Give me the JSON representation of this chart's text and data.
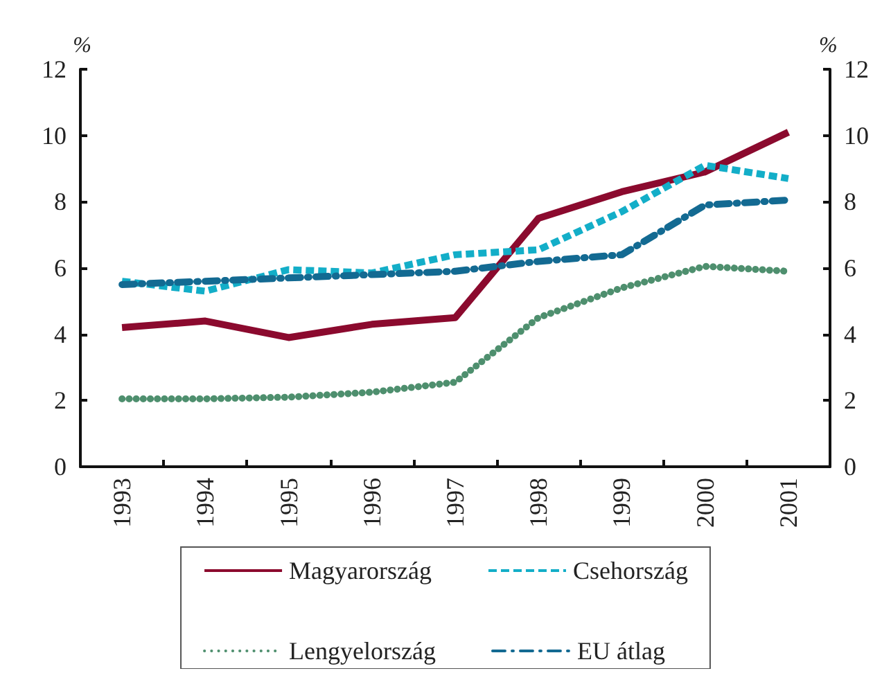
{
  "chart_data": {
    "type": "line",
    "categories": [
      "1993",
      "1994",
      "1995",
      "1996",
      "1997",
      "1998",
      "1999",
      "2000",
      "2001"
    ],
    "series": [
      {
        "name": "Magyarország",
        "color": "#8b0a2e",
        "line_style": "solid",
        "values": [
          4.2,
          4.4,
          3.9,
          4.3,
          4.5,
          7.5,
          8.3,
          8.9,
          10.1
        ]
      },
      {
        "name": "Csehország",
        "color": "#13aec8",
        "line_style": "dashed",
        "values": [
          5.6,
          5.3,
          5.95,
          5.85,
          6.4,
          6.55,
          7.7,
          9.1,
          8.7
        ]
      },
      {
        "name": "Lengyelország",
        "color": "#4e8f6e",
        "line_style": "dotted",
        "values": [
          2.05,
          2.05,
          2.1,
          2.25,
          2.55,
          4.5,
          5.4,
          6.05,
          5.9
        ]
      },
      {
        "name": "EU átlag",
        "color": "#136a92",
        "line_style": "dashdot",
        "values": [
          5.5,
          5.6,
          5.7,
          5.8,
          5.9,
          6.2,
          6.4,
          7.9,
          8.05
        ]
      }
    ],
    "ylabel": "%",
    "y2label": "%",
    "ylim": [
      0,
      12
    ],
    "yticks": [
      0,
      2,
      4,
      6,
      8,
      10,
      12
    ],
    "y2lim": [
      0,
      12
    ],
    "y2ticks": [
      0,
      2,
      4,
      6,
      8,
      10,
      12
    ],
    "grid": false,
    "legend": "bottom",
    "marker": "none"
  }
}
